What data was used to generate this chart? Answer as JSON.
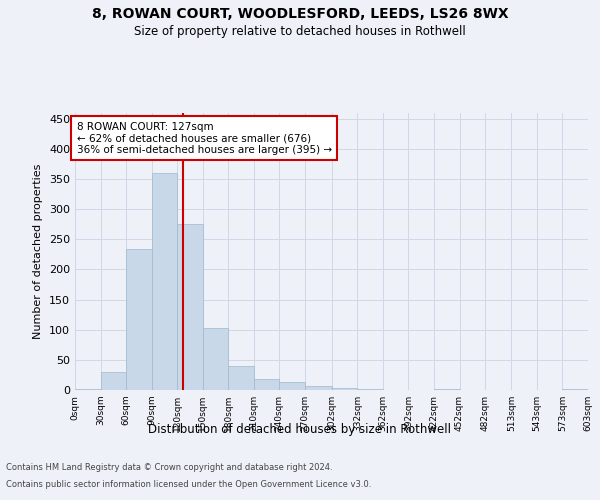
{
  "title_line1": "8, ROWAN COURT, WOODLESFORD, LEEDS, LS26 8WX",
  "title_line2": "Size of property relative to detached houses in Rothwell",
  "xlabel": "Distribution of detached houses by size in Rothwell",
  "ylabel": "Number of detached properties",
  "footer_line1": "Contains HM Land Registry data © Crown copyright and database right 2024.",
  "footer_line2": "Contains public sector information licensed under the Open Government Licence v3.0.",
  "bin_edges": [
    0,
    30,
    60,
    90,
    120,
    150,
    180,
    210,
    240,
    270,
    302,
    332,
    362,
    392,
    422,
    452,
    482,
    513,
    543,
    573,
    603
  ],
  "bar_heights": [
    2,
    30,
    234,
    360,
    275,
    103,
    40,
    19,
    13,
    6,
    3,
    1,
    0,
    0,
    1,
    0,
    0,
    0,
    0,
    1
  ],
  "bar_color": "#c8d8e8",
  "bar_edge_color": "#a0b8cc",
  "grid_color": "#d0d8e8",
  "property_size": 127,
  "vline_color": "#cc0000",
  "annotation_line1": "8 ROWAN COURT: 127sqm",
  "annotation_line2": "← 62% of detached houses are smaller (676)",
  "annotation_line3": "36% of semi-detached houses are larger (395) →",
  "annotation_box_color": "#ffffff",
  "annotation_box_edge": "#cc0000",
  "ylim": [
    0,
    460
  ],
  "yticks": [
    0,
    50,
    100,
    150,
    200,
    250,
    300,
    350,
    400,
    450
  ],
  "background_color": "#eef2f8",
  "axes_background": "#eef2f8"
}
